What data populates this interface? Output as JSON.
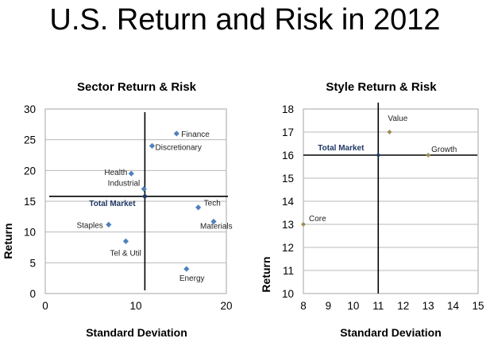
{
  "page_title": "U.S. Return and Risk in 2012",
  "chart_data": [
    {
      "type": "scatter",
      "title": "Sector Return & Risk",
      "xlabel": "Standard Deviation",
      "ylabel": "Return",
      "xlim": [
        0,
        20
      ],
      "ylim": [
        0,
        30
      ],
      "xticks": [
        "0",
        "10",
        "20"
      ],
      "yticks": [
        "0",
        "5",
        "10",
        "15",
        "20",
        "25",
        "30"
      ],
      "grid": "horizontal",
      "marker_color": "#4f81bd",
      "points": [
        {
          "label": "Finance",
          "x": 14.5,
          "y": 26
        },
        {
          "label": "Discretionary",
          "x": 11.8,
          "y": 24
        },
        {
          "label": "Health",
          "x": 9.5,
          "y": 19.5
        },
        {
          "label": "Industrial",
          "x": 10.9,
          "y": 17
        },
        {
          "label": "Tech",
          "x": 16.9,
          "y": 14
        },
        {
          "label": "Materials",
          "x": 18.6,
          "y": 11.7
        },
        {
          "label": "Staples",
          "x": 7,
          "y": 11.2
        },
        {
          "label": "Tel & Util",
          "x": 8.9,
          "y": 8.5
        },
        {
          "label": "Energy",
          "x": 15.6,
          "y": 4
        }
      ],
      "reference": {
        "label": "Total Market",
        "x": 11,
        "y": 15.8,
        "color": "#1f3864"
      }
    },
    {
      "type": "scatter",
      "title": "Style Return & Risk",
      "xlabel": "Standard Deviation",
      "ylabel": "Return",
      "xlim": [
        8,
        15
      ],
      "ylim": [
        10,
        18
      ],
      "xticks": [
        "8",
        "9",
        "10",
        "11",
        "12",
        "13",
        "14",
        "15"
      ],
      "yticks": [
        "10",
        "11",
        "12",
        "13",
        "14",
        "15",
        "16",
        "17",
        "18"
      ],
      "grid": "horizontal",
      "marker_color": "#9b8b55",
      "points": [
        {
          "label": "Value",
          "x": 11.45,
          "y": 17
        },
        {
          "label": "Growth",
          "x": 13,
          "y": 16
        },
        {
          "label": "Core",
          "x": 8,
          "y": 13
        }
      ],
      "reference": {
        "label": "Total Market",
        "x": 11,
        "y": 16,
        "color": "#1f3864"
      }
    }
  ]
}
